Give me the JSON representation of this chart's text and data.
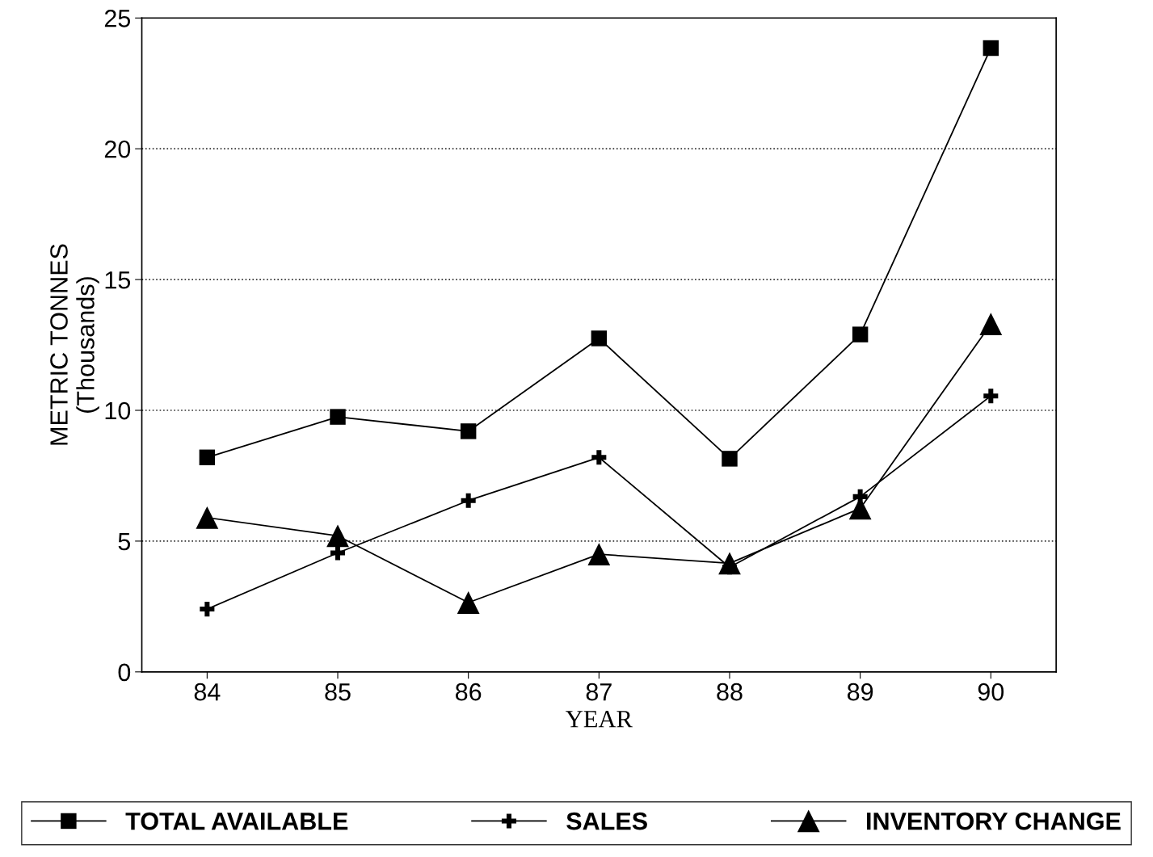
{
  "chart_data": {
    "type": "line",
    "xlabel": "YEAR",
    "ylabel": "METRIC TONNES\n(Thousands)",
    "categories": [
      "84",
      "85",
      "86",
      "87",
      "88",
      "89",
      "90"
    ],
    "series": [
      {
        "name": "TOTAL AVAILABLE",
        "color": "#000000",
        "marker": "square",
        "values": [
          8.2,
          9.75,
          9.2,
          12.75,
          8.15,
          12.9,
          23.85
        ]
      },
      {
        "name": "SALES",
        "color": "#000000",
        "marker": "cross",
        "values": [
          2.4,
          4.55,
          6.55,
          8.2,
          4.0,
          6.7,
          10.55
        ]
      },
      {
        "name": "INVENTORY CHANGE",
        "color": "#000000",
        "marker": "triangle",
        "values": [
          5.9,
          5.2,
          2.65,
          4.5,
          4.15,
          6.25,
          13.3
        ]
      }
    ],
    "ylim": [
      0,
      25
    ],
    "yticks": [
      0,
      5,
      10,
      15,
      20,
      25
    ],
    "grid": "y",
    "legend": "bottom",
    "line_style": "solid"
  }
}
